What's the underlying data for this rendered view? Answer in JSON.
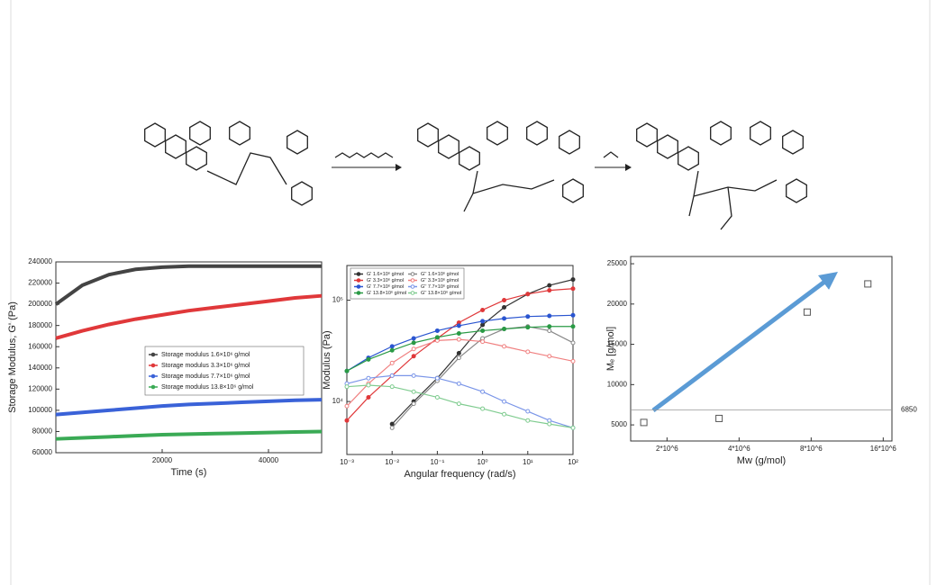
{
  "chart_data": [
    {
      "type": "line",
      "x_label": "Time (s)",
      "y_label": "Storage Modulus, G' (Pa)",
      "x": [
        0,
        5000,
        10000,
        15000,
        20000,
        25000,
        30000,
        35000,
        40000,
        45000,
        50000
      ],
      "xlim": [
        0,
        50000
      ],
      "xticks": [
        20000,
        40000
      ],
      "ylim": [
        60000,
        240000
      ],
      "yticks": [
        60000,
        80000,
        100000,
        120000,
        140000,
        160000,
        180000,
        200000,
        220000,
        240000
      ],
      "legend": "center-right",
      "series": [
        {
          "name": "Storage modulus 1.6×10⁶ g/mol",
          "color": "#444444",
          "values": [
            200000,
            218000,
            228000,
            233000,
            235000,
            236000,
            236000,
            236000,
            236000,
            236000,
            236000
          ]
        },
        {
          "name": "Storage modulus 3.3×10⁶ g/mol",
          "color": "#e0383a",
          "values": [
            168000,
            175000,
            181000,
            186000,
            190000,
            194000,
            197000,
            200000,
            203000,
            206000,
            208000
          ]
        },
        {
          "name": "Storage modulus 7.7×10⁶ g/mol",
          "color": "#3a62d8",
          "values": [
            96000,
            98000,
            100000,
            102000,
            104000,
            105500,
            106500,
            107500,
            108500,
            109500,
            110000
          ]
        },
        {
          "name": "Storage modulus 13.8×10⁶ g/mol",
          "color": "#3aaa55",
          "values": [
            73000,
            74000,
            75000,
            76000,
            77000,
            77500,
            78000,
            78500,
            79000,
            79500,
            80000
          ]
        }
      ]
    },
    {
      "type": "line",
      "x_scale": "log",
      "y_scale": "log",
      "markers": true,
      "x_label": "Angular frequency (rad/s)",
      "y_label": "Modulus (Pa)",
      "x": [
        0.001,
        0.003,
        0.01,
        0.03,
        0.1,
        0.3,
        1,
        3,
        10,
        30,
        100
      ],
      "xlim": [
        0.001,
        100
      ],
      "xticks": [
        {
          "value": 0.001,
          "label": "10⁻³"
        },
        {
          "value": 0.01,
          "label": "10⁻²"
        },
        {
          "value": 0.1,
          "label": "10⁻¹"
        },
        {
          "value": 1,
          "label": "10⁰"
        },
        {
          "value": 10,
          "label": "10¹"
        },
        {
          "value": 100,
          "label": "10²"
        }
      ],
      "ylim": [
        3000,
        220000
      ],
      "yticks": [
        {
          "value": 10000,
          "label": "10⁴"
        },
        {
          "value": 100000,
          "label": "10⁵"
        }
      ],
      "legend": "upper-left",
      "series": [
        {
          "name": "G' 1.6×10⁶ g/mol",
          "color": "#333333",
          "marker": "filled",
          "values": [
            null,
            null,
            6000,
            10000,
            17000,
            30000,
            57000,
            85000,
            115000,
            140000,
            160000
          ]
        },
        {
          "name": "G'' 1.6×10⁶ g/mol",
          "color": "#888888",
          "marker": "open",
          "values": [
            null,
            null,
            5500,
            9500,
            16000,
            27000,
            42000,
            52000,
            55000,
            50000,
            38000
          ]
        },
        {
          "name": "G' 3.3×10⁶ g/mol",
          "color": "#e0383a",
          "marker": "filled",
          "values": [
            6500,
            11000,
            18000,
            28000,
            42000,
            60000,
            80000,
            100000,
            115000,
            125000,
            130000
          ]
        },
        {
          "name": "G'' 3.3×10⁶ g/mol",
          "color": "#f08080",
          "marker": "open",
          "values": [
            9000,
            15000,
            24000,
            33000,
            40000,
            41000,
            39000,
            35000,
            31000,
            28000,
            25000
          ]
        },
        {
          "name": "G' 7.7×10⁶ g/mol",
          "color": "#2a55d0",
          "marker": "filled",
          "values": [
            20000,
            27000,
            35000,
            42000,
            50000,
            56000,
            62000,
            66000,
            69000,
            70000,
            71000
          ]
        },
        {
          "name": "G'' 7.7×10⁶ g/mol",
          "color": "#7a95e8",
          "marker": "open",
          "values": [
            15000,
            17000,
            18000,
            18000,
            17000,
            15000,
            12500,
            10000,
            8000,
            6500,
            5500
          ]
        },
        {
          "name": "G' 13.8×10⁶ g/mol",
          "color": "#2a9a45",
          "marker": "filled",
          "values": [
            20000,
            26000,
            32000,
            38000,
            43000,
            47000,
            50000,
            52000,
            54000,
            55000,
            55000
          ]
        },
        {
          "name": "G'' 13.8×10⁶ g/mol",
          "color": "#80cc90",
          "marker": "open",
          "values": [
            14000,
            14500,
            14000,
            12500,
            11000,
            9500,
            8500,
            7500,
            6500,
            6000,
            5500
          ]
        }
      ]
    },
    {
      "type": "scatter",
      "x_scale": "log",
      "x_label": "Mw (g/mol)",
      "y_label": "Mₑ [g/mol]",
      "x": [
        1600000,
        3300000,
        7700000,
        13800000
      ],
      "values": [
        5300,
        5800,
        19000,
        22500
      ],
      "color": "#555555",
      "xlim": [
        1410000,
        17400000
      ],
      "xticks": [
        {
          "value": 2000000,
          "label": "2*10^6"
        },
        {
          "value": 4000000,
          "label": "4*10^6"
        },
        {
          "value": 8000000,
          "label": "8*10^6"
        },
        {
          "value": 16000000,
          "label": "16*10^6"
        }
      ],
      "ylim": [
        3000,
        25900
      ],
      "yticks": [
        5000,
        10000,
        15000,
        20000,
        25000
      ],
      "hline": 6850
    }
  ]
}
